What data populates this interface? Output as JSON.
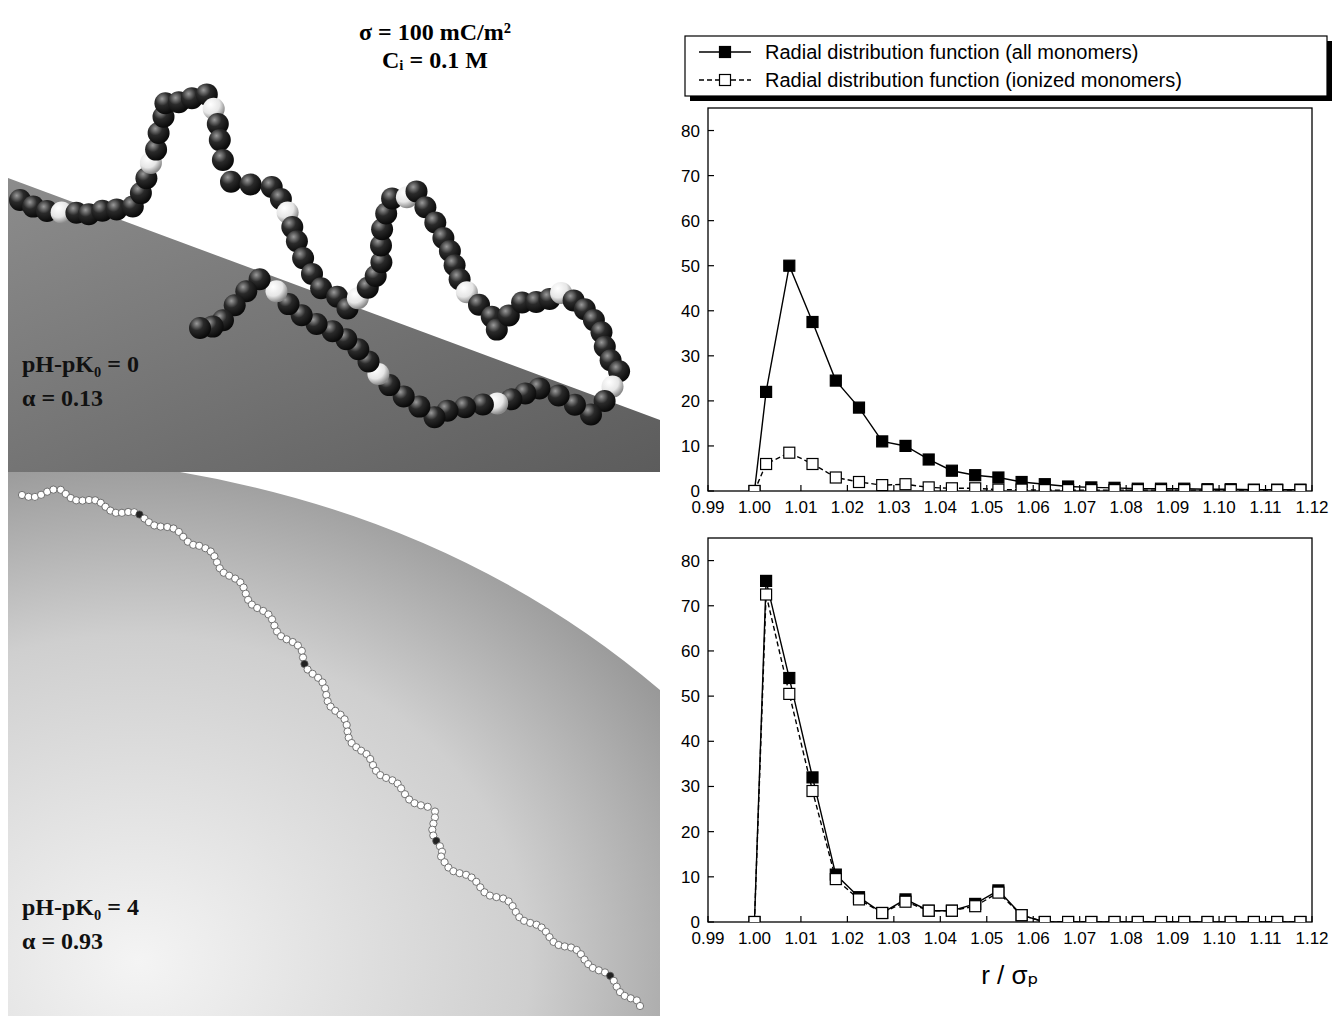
{
  "figure": {
    "header": [
      "σ = 100 mC/m²",
      "Cᵢ = 0.1 M"
    ],
    "panels": [
      {
        "condition": "pH-pK₀ = 0",
        "alpha": "α = 0.13"
      },
      {
        "condition": "pH-pK₀ = 4",
        "alpha": "α = 0.93"
      }
    ]
  },
  "chart_data": [
    {
      "type": "line",
      "legend": "top",
      "x": [
        1,
        1.0025,
        1.0075,
        1.0125,
        1.0175,
        1.0225,
        1.0275,
        1.0325,
        1.0375,
        1.0425,
        1.0475,
        1.0525,
        1.0575,
        1.0625,
        1.0675,
        1.0725,
        1.0775,
        1.0825,
        1.0875,
        1.0925,
        1.0975,
        1.1025,
        1.1075,
        1.1125,
        1.1175
      ],
      "xlim": [
        0.99,
        1.12
      ],
      "ylim": [
        0,
        85
      ],
      "xticks": [
        0.99,
        {
          "value": 1,
          "label": "1.00"
        },
        1.01,
        1.02,
        1.03,
        1.04,
        1.05,
        1.06,
        1.07,
        1.08,
        1.09,
        {
          "value": 1.1,
          "label": "1.10"
        },
        1.11,
        1.12
      ],
      "yticks": [
        0,
        10,
        20,
        30,
        40,
        50,
        60,
        70,
        80
      ],
      "series": [
        {
          "name": "Radial distribution function (all monomers)",
          "color": "#000000",
          "marker": "filled-square",
          "line_style": "solid",
          "values": [
            0,
            22,
            50,
            37.5,
            24.5,
            18.5,
            11,
            10,
            7,
            4.5,
            3.5,
            3,
            2,
            1.5,
            1,
            0.8,
            0.7,
            0.5,
            0.5,
            0.5,
            0.4,
            0.4,
            0.3,
            0.3,
            0.3
          ]
        },
        {
          "name": "Radial distribution function (ionized monomers)",
          "color": "#000000",
          "marker": "open-square",
          "line_style": "dashed",
          "values": [
            0,
            6,
            8.5,
            6,
            3,
            2,
            1.3,
            1.5,
            0.8,
            0.6,
            0.6,
            0.3,
            0.3,
            0.2,
            0.2,
            0.2,
            0.2,
            0.2,
            0.2,
            0.2,
            0.2,
            0.2,
            0.2,
            0.2,
            0.2
          ]
        }
      ]
    },
    {
      "type": "line",
      "xlabel": "r / σₚ",
      "x": [
        1,
        1.0025,
        1.0075,
        1.0125,
        1.0175,
        1.0225,
        1.0275,
        1.0325,
        1.0375,
        1.0425,
        1.0475,
        1.0525,
        1.0575,
        1.0625,
        1.0675,
        1.0725,
        1.0775,
        1.0825,
        1.0875,
        1.0925,
        1.0975,
        1.1025,
        1.1075,
        1.1125,
        1.1175
      ],
      "xlim": [
        0.99,
        1.12
      ],
      "ylim": [
        0,
        85
      ],
      "xticks": [
        0.99,
        {
          "value": 1,
          "label": "1.00"
        },
        1.01,
        1.02,
        1.03,
        1.04,
        1.05,
        1.06,
        1.07,
        1.08,
        1.09,
        {
          "value": 1.1,
          "label": "1.10"
        },
        1.11,
        1.12
      ],
      "yticks": [
        0,
        10,
        20,
        30,
        40,
        50,
        60,
        70,
        80
      ],
      "series": [
        {
          "color": "#000000",
          "marker": "filled-square",
          "line_style": "solid",
          "values": [
            0,
            75.5,
            54,
            32,
            10.5,
            5.5,
            2,
            5,
            2.5,
            2.5,
            4,
            7,
            1.5,
            0,
            0,
            0,
            0,
            0,
            0,
            0,
            0,
            0,
            0,
            0,
            0
          ]
        },
        {
          "color": "#000000",
          "marker": "open-square",
          "line_style": "dashed",
          "values": [
            0,
            72.5,
            50.5,
            29,
            9.5,
            5,
            2,
            4.5,
            2.5,
            2.5,
            3.5,
            6.5,
            1.5,
            0,
            0,
            0,
            0,
            0,
            0,
            0,
            0,
            0,
            0,
            0,
            0
          ]
        }
      ]
    }
  ]
}
